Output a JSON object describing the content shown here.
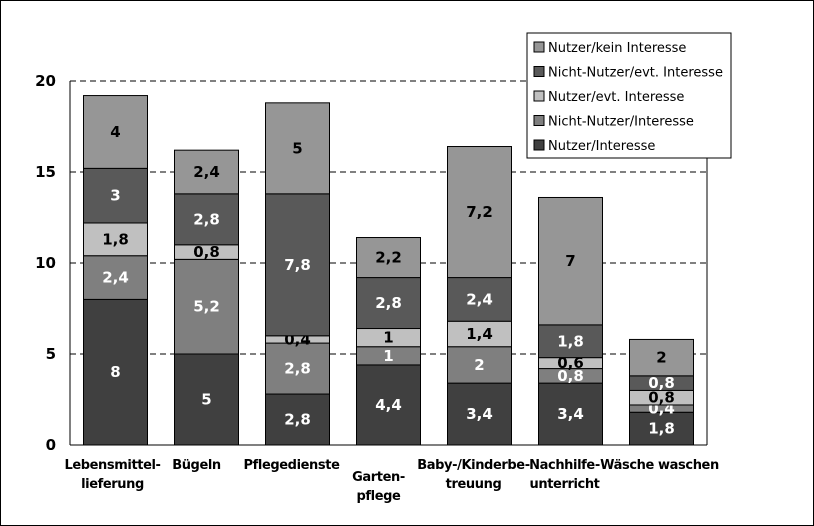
{
  "chart_data": {
    "type": "bar",
    "stacked": true,
    "title": "",
    "xlabel": "",
    "ylabel": "",
    "ylim": [
      0,
      20
    ],
    "yticks": [
      "0",
      "5",
      "10",
      "15",
      "20"
    ],
    "grid": "horizontal dashed",
    "legend_position": "top-right",
    "categories": [
      [
        "Lebensmittel-",
        "lieferung"
      ],
      [
        "Bügeln"
      ],
      [
        "Pflegedienste"
      ],
      [
        "Garten-",
        "pflege"
      ],
      [
        "Baby-/Kinderbe-",
        "treuung"
      ],
      [
        "Nachhilfe-",
        "unterricht"
      ],
      [
        "Wäsche waschen"
      ]
    ],
    "series": [
      {
        "name": "Nutzer/Interesse",
        "color": "#404040",
        "label_color": "#ffffff",
        "values": [
          8,
          5,
          2.8,
          4.4,
          3.4,
          3.4,
          1.8
        ],
        "labels": [
          "8",
          "5",
          "2,8",
          "4,4",
          "3,4",
          "3,4",
          "1,8"
        ]
      },
      {
        "name": "Nicht-Nutzer/Interesse",
        "color": "#7f7f7f",
        "label_color": "#ffffff",
        "values": [
          2.4,
          5.2,
          2.8,
          1,
          2,
          0.8,
          0.4
        ],
        "labels": [
          "2,4",
          "5,2",
          "2,8",
          "1",
          "2",
          "0,8",
          "0,4"
        ]
      },
      {
        "name": "Nutzer/evt. Interesse",
        "color": "#c0c0c0",
        "label_color": "#000000",
        "values": [
          1.8,
          0.8,
          0.4,
          1,
          1.4,
          0.6,
          0.8
        ],
        "labels": [
          "1,8",
          "0,8",
          "0,4",
          "1",
          "1,4",
          "0,6",
          "0,8"
        ]
      },
      {
        "name": "Nicht-Nutzer/evt. Interesse",
        "color": "#595959",
        "label_color": "#ffffff",
        "values": [
          3,
          2.8,
          7.8,
          2.8,
          2.4,
          1.8,
          0.8
        ],
        "labels": [
          "3",
          "2,8",
          "7,8",
          "2,8",
          "2,4",
          "1,8",
          "0,8"
        ]
      },
      {
        "name": "Nutzer/kein Interesse",
        "color": "#969696",
        "label_color": "#000000",
        "values": [
          4,
          2.4,
          5,
          2.2,
          7.2,
          7,
          2
        ],
        "labels": [
          "4",
          "2,4",
          "5",
          "2,2",
          "7,2",
          "7",
          "2"
        ]
      }
    ]
  }
}
